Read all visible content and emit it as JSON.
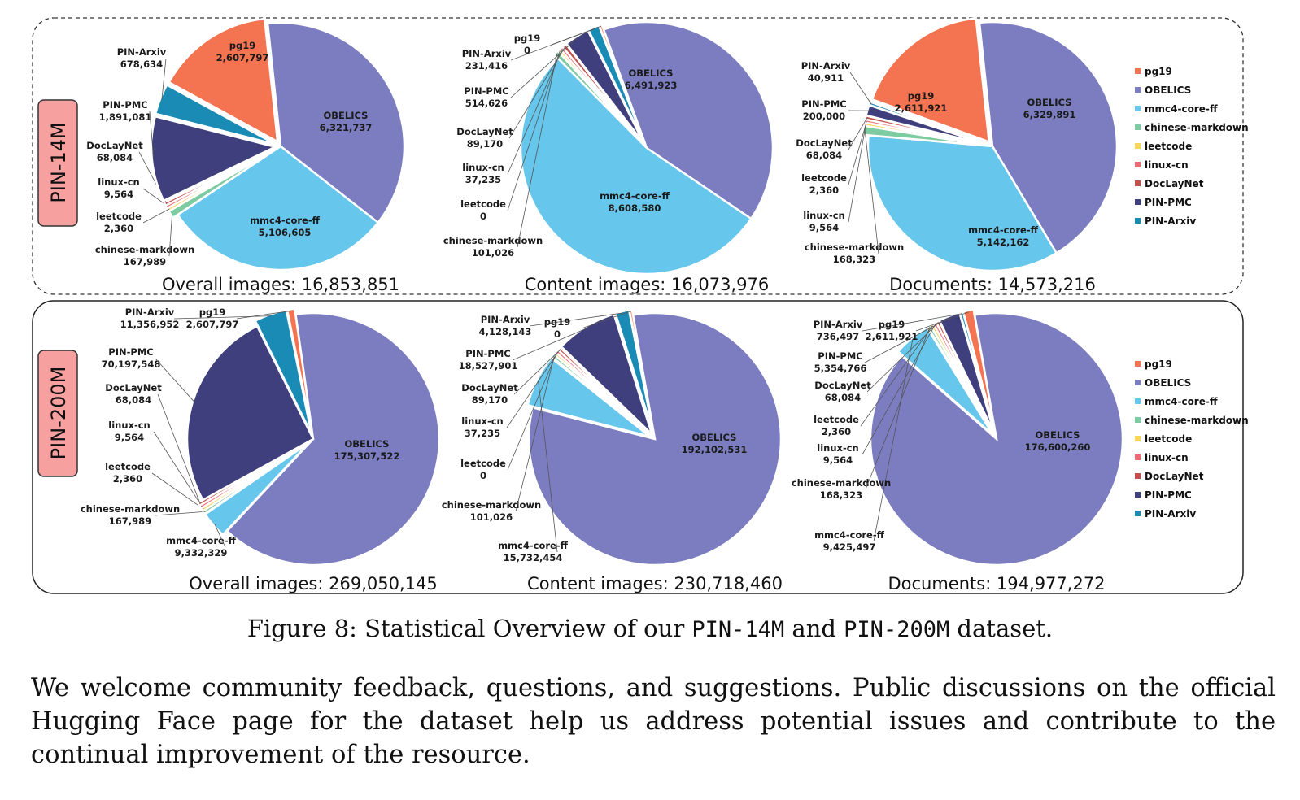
{
  "rows": [
    {
      "label": "PIN-14M"
    },
    {
      "label": "PIN-200M"
    }
  ],
  "legend": [
    "pg19",
    "OBELICS",
    "mmc4-core-ff",
    "chinese-markdown",
    "leetcode",
    "linux-cn",
    "DocLayNet",
    "PIN-PMC",
    "PIN-Arxiv"
  ],
  "colors": {
    "pg19": "#f47350",
    "OBELICS": "#7b7dc0",
    "mmc4-core-ff": "#67c6eb",
    "chinese-markdown": "#7ccba1",
    "leetcode": "#f9d55a",
    "linux-cn": "#ef6b73",
    "DocLayNet": "#c0504d",
    "PIN-PMC": "#3e3f7c",
    "PIN-Arxiv": "#1a8bb5"
  },
  "chart_data": [
    {
      "type": "pie",
      "title": "Overall images: 16,853,851",
      "slices": [
        {
          "label": "OBELICS",
          "value": 6321737,
          "value_text": "6,321,737"
        },
        {
          "label": "mmc4-core-ff",
          "value": 5106605,
          "value_text": "5,106,605"
        },
        {
          "label": "chinese-markdown",
          "value": 167989,
          "value_text": "167,989"
        },
        {
          "label": "leetcode",
          "value": 2360,
          "value_text": "2,360"
        },
        {
          "label": "linux-cn",
          "value": 9564,
          "value_text": "9,564"
        },
        {
          "label": "DocLayNet",
          "value": 68084,
          "value_text": "68,084"
        },
        {
          "label": "PIN-PMC",
          "value": 1891081,
          "value_text": "1,891,081"
        },
        {
          "label": "PIN-Arxiv",
          "value": 678634,
          "value_text": "678,634"
        },
        {
          "label": "pg19",
          "value": 2607797,
          "value_text": "2,607,797"
        }
      ]
    },
    {
      "type": "pie",
      "title": "Content images: 16,073,976",
      "slices": [
        {
          "label": "OBELICS",
          "value": 6491923,
          "value_text": "6,491,923"
        },
        {
          "label": "mmc4-core-ff",
          "value": 8608580,
          "value_text": "8,608,580"
        },
        {
          "label": "chinese-markdown",
          "value": 101026,
          "value_text": "101,026"
        },
        {
          "label": "leetcode",
          "value": 0,
          "value_text": "0"
        },
        {
          "label": "linux-cn",
          "value": 37235,
          "value_text": "37,235"
        },
        {
          "label": "DocLayNet",
          "value": 89170,
          "value_text": "89,170"
        },
        {
          "label": "PIN-PMC",
          "value": 514626,
          "value_text": "514,626"
        },
        {
          "label": "PIN-Arxiv",
          "value": 231416,
          "value_text": "231,416"
        },
        {
          "label": "pg19",
          "value": 0,
          "value_text": "0"
        }
      ]
    },
    {
      "type": "pie",
      "title": "Documents: 14,573,216",
      "slices": [
        {
          "label": "OBELICS",
          "value": 6329891,
          "value_text": "6,329,891"
        },
        {
          "label": "mmc4-core-ff",
          "value": 5142162,
          "value_text": "5,142,162"
        },
        {
          "label": "chinese-markdown",
          "value": 168323,
          "value_text": "168,323"
        },
        {
          "label": "leetcode",
          "value": 2360,
          "value_text": "2,360"
        },
        {
          "label": "linux-cn",
          "value": 9564,
          "value_text": "9,564"
        },
        {
          "label": "DocLayNet",
          "value": 68084,
          "value_text": "68,084"
        },
        {
          "label": "PIN-PMC",
          "value": 200000,
          "value_text": "200,000"
        },
        {
          "label": "PIN-Arxiv",
          "value": 40911,
          "value_text": "40,911"
        },
        {
          "label": "pg19",
          "value": 2611921,
          "value_text": "2,611,921"
        }
      ]
    },
    {
      "type": "pie",
      "title": "Overall images: 269,050,145",
      "slices": [
        {
          "label": "OBELICS",
          "value": 175307522,
          "value_text": "175,307,522"
        },
        {
          "label": "mmc4-core-ff",
          "value": 9332329,
          "value_text": "9,332,329"
        },
        {
          "label": "chinese-markdown",
          "value": 167989,
          "value_text": "167,989"
        },
        {
          "label": "leetcode",
          "value": 2360,
          "value_text": "2,360"
        },
        {
          "label": "linux-cn",
          "value": 9564,
          "value_text": "9,564"
        },
        {
          "label": "DocLayNet",
          "value": 68084,
          "value_text": "68,084"
        },
        {
          "label": "PIN-PMC",
          "value": 70197548,
          "value_text": "70,197,548"
        },
        {
          "label": "PIN-Arxiv",
          "value": 11356952,
          "value_text": "11,356,952"
        },
        {
          "label": "pg19",
          "value": 2607797,
          "value_text": "2,607,797"
        }
      ]
    },
    {
      "type": "pie",
      "title": "Content images: 230,718,460",
      "slices": [
        {
          "label": "OBELICS",
          "value": 192102531,
          "value_text": "192,102,531"
        },
        {
          "label": "mmc4-core-ff",
          "value": 15732454,
          "value_text": "15,732,454"
        },
        {
          "label": "chinese-markdown",
          "value": 101026,
          "value_text": "101,026"
        },
        {
          "label": "leetcode",
          "value": 0,
          "value_text": "0"
        },
        {
          "label": "linux-cn",
          "value": 37235,
          "value_text": "37,235"
        },
        {
          "label": "DocLayNet",
          "value": 89170,
          "value_text": "89,170"
        },
        {
          "label": "PIN-PMC",
          "value": 18527901,
          "value_text": "18,527,901"
        },
        {
          "label": "PIN-Arxiv",
          "value": 4128143,
          "value_text": "4,128,143"
        },
        {
          "label": "pg19",
          "value": 0,
          "value_text": "0"
        }
      ]
    },
    {
      "type": "pie",
      "title": "Documents: 194,977,272",
      "slices": [
        {
          "label": "OBELICS",
          "value": 176600260,
          "value_text": "176,600,260"
        },
        {
          "label": "mmc4-core-ff",
          "value": 9425497,
          "value_text": "9,425,497"
        },
        {
          "label": "chinese-markdown",
          "value": 168323,
          "value_text": "168,323"
        },
        {
          "label": "leetcode",
          "value": 2360,
          "value_text": "2,360"
        },
        {
          "label": "linux-cn",
          "value": 9564,
          "value_text": "9,564"
        },
        {
          "label": "DocLayNet",
          "value": 68084,
          "value_text": "68,084"
        },
        {
          "label": "PIN-PMC",
          "value": 5354766,
          "value_text": "5,354,766"
        },
        {
          "label": "PIN-Arxiv",
          "value": 736497,
          "value_text": "736,497"
        },
        {
          "label": "pg19",
          "value": 2611921,
          "value_text": "2,611,921"
        }
      ]
    }
  ],
  "caption": {
    "prefix": "Figure 8: Statistical Overview of our ",
    "name1": "PIN-14M",
    "middle": " and ",
    "name2": "PIN-200M",
    "suffix": " dataset."
  },
  "body_text": "We welcome community feedback, questions, and suggestions. Public discussions on the official Hugging Face page for the dataset help us address potential issues and contribute to the continual improvement of the resource."
}
